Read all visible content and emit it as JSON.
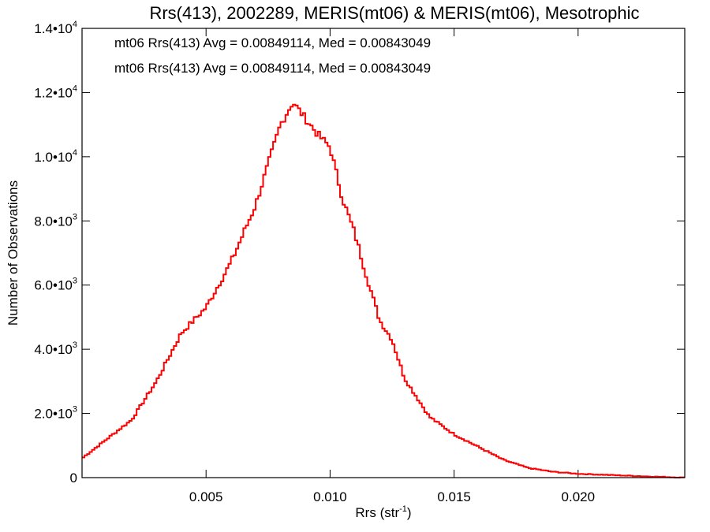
{
  "chart_data": {
    "type": "histogram-step",
    "title": "Rrs(413), 2002289, MERIS(mt06) & MERIS(mt06), Mesotrophic",
    "xlabel": "Rrs (str",
    "xlabel_sup": "-1",
    "xlabel_close": ")",
    "ylabel": "Number of Observations",
    "xlim": [
      0.0,
      0.0243
    ],
    "ylim": [
      0,
      14000
    ],
    "x_ticks": [
      {
        "value": 0.005,
        "label": "0.005"
      },
      {
        "value": 0.01,
        "label": "0.010"
      },
      {
        "value": 0.015,
        "label": "0.015"
      },
      {
        "value": 0.02,
        "label": "0.020"
      }
    ],
    "y_ticks": [
      {
        "value": 0,
        "label": "0",
        "exp": ""
      },
      {
        "value": 2000,
        "label": "2.0•10",
        "exp": "3"
      },
      {
        "value": 4000,
        "label": "4.0•10",
        "exp": "3"
      },
      {
        "value": 6000,
        "label": "6.0•10",
        "exp": "3"
      },
      {
        "value": 8000,
        "label": "8.0•10",
        "exp": "3"
      },
      {
        "value": 10000,
        "label": "1.0•10",
        "exp": "4"
      },
      {
        "value": 12000,
        "label": "1.2•10",
        "exp": "4"
      },
      {
        "value": 14000,
        "label": "1.4•10",
        "exp": "4"
      }
    ],
    "legend": [
      {
        "text": "mt06 Rrs(413) Avg = 0.00849114, Med = 0.00843049",
        "color": "#000000"
      },
      {
        "text": "mt06 Rrs(413) Avg = 0.00849114, Med = 0.00843049",
        "color": "#ff0000"
      }
    ],
    "series": [
      {
        "color": "#ff0000",
        "x": [
          0.0,
          0.002,
          0.003,
          0.004,
          0.005,
          0.006,
          0.007,
          0.008,
          0.0085,
          0.009,
          0.0095,
          0.01,
          0.0105,
          0.011,
          0.0115,
          0.012,
          0.0125,
          0.013,
          0.014,
          0.015,
          0.016,
          0.017,
          0.018,
          0.019,
          0.02,
          0.022,
          0.0243
        ],
        "values": [
          600,
          1800,
          3000,
          4500,
          5300,
          6700,
          8500,
          11000,
          11700,
          11200,
          10700,
          10300,
          8700,
          7600,
          6200,
          4900,
          4300,
          3100,
          1900,
          1350,
          950,
          550,
          300,
          180,
          120,
          60,
          0
        ]
      }
    ]
  }
}
